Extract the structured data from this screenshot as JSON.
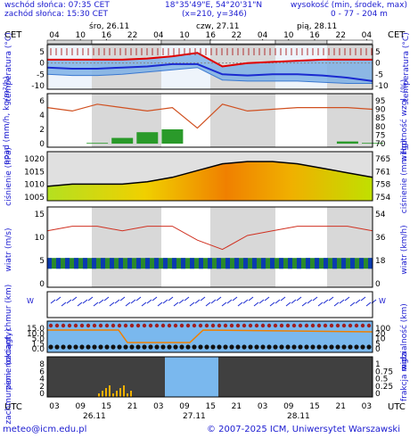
{
  "header": {
    "sunrise": "wschód słońca: 07:35 CET",
    "sunset": "zachód słońca: 15:30 CET",
    "coords": "18°35'49\"E, 54°20'31\"N",
    "grid": "(x=210, y=346)",
    "altitude_title": "wysokość (min, środek, max)",
    "altitude_values": "0 - 77 - 204 m"
  },
  "timezone_top": "CET",
  "timezone_bottom": "UTC",
  "top_hours": [
    "04",
    "10",
    "16",
    "22",
    "04",
    "10",
    "16",
    "22",
    "04",
    "10",
    "16",
    "22",
    "04"
  ],
  "bottom_hours": [
    "03",
    "09",
    "15",
    "21",
    "03",
    "09",
    "15",
    "21",
    "03",
    "09",
    "15",
    "21",
    "03"
  ],
  "top_days": [
    "śro, 26.11",
    "czw, 27.11",
    "pią, 28.11"
  ],
  "bottom_days": [
    "26.11",
    "27.11",
    "28.11"
  ],
  "footer": {
    "email": "meteo@icm.edu.pl",
    "copyright": "© 2007-2025 ICM, Uniwersytet Warszawski"
  },
  "panels": {
    "temperature": {
      "left": "temperatura (°C)",
      "right": "temperatura (°C)",
      "ticks": [
        "5",
        "0",
        "-5",
        "-10"
      ]
    },
    "precip": {
      "left": "opad (mm/h, kg/m²/h)",
      "right": "wilgotność wzgl. (%)",
      "ticks": [
        "6",
        "4",
        "2",
        "0"
      ],
      "rticks": [
        "95",
        "90",
        "85",
        "80",
        "75",
        "70"
      ]
    },
    "pressure": {
      "left": "ciśnienie (hPa)",
      "right": "ciśnienie (mm Hg)",
      "ticks": [
        "1020",
        "1015",
        "1010",
        "1005"
      ],
      "rticks": [
        "765",
        "761",
        "758",
        "754"
      ]
    },
    "wind": {
      "left": "wiatr (m/s)",
      "right": "wiatr (km/h)",
      "ticks": [
        "15",
        "10",
        "5",
        "0"
      ],
      "rticks": [
        "54",
        "36",
        "18",
        "0"
      ]
    },
    "winddir": {
      "left": "W S E N",
      "right": "W S E N"
    },
    "visibility": {
      "left": "pion. rozciągł. chmur (km)",
      "right": "widzialność (km)",
      "ticks": [
        "15.0",
        "10.0",
        "5.0",
        "1.5",
        "0.0"
      ],
      "rticks": [
        "100",
        "20",
        "10",
        "5",
        "0"
      ]
    },
    "clouds": {
      "left": "zachmurzenie (oktanty)",
      "right": "frakcja mgła",
      "ticks": [
        "8",
        "6",
        "4",
        "2",
        "0"
      ],
      "rticks": [
        "1",
        "0.75",
        "0.5",
        "0.25",
        "0"
      ]
    }
  },
  "chart_data": {
    "type": "line",
    "x_hours_utc": [
      0,
      6,
      12,
      18,
      24,
      30,
      36,
      42,
      48,
      54,
      60,
      66,
      72,
      78
    ],
    "temperature_c": {
      "max": [
        1.5,
        1.5,
        1.5,
        1.5,
        2.0,
        3.0,
        4.5,
        -1.5,
        0.0,
        0.5,
        1.0,
        1.5,
        1.5,
        1.5
      ],
      "mean": [
        -2.0,
        -2.5,
        -2.5,
        -2.0,
        -1.5,
        -0.5,
        -0.5,
        -5.0,
        -5.5,
        -5.0,
        -5.0,
        -5.5,
        -6.5,
        -8.0
      ],
      "min": [
        -5.0,
        -5.5,
        -5.5,
        -5.0,
        -4.0,
        -3.0,
        -2.0,
        -7.5,
        -8.0,
        -8.0,
        -8.0,
        -8.5,
        -9.0,
        -9.0
      ]
    },
    "humidity_pct": [
      90,
      88,
      92,
      90,
      88,
      90,
      78,
      92,
      88,
      89,
      90,
      90,
      90,
      89
    ],
    "precip_mm_h": [
      0,
      0,
      0.1,
      0.8,
      1.6,
      2.0,
      0,
      0,
      0,
      0,
      0,
      0,
      0.3,
      0.1
    ],
    "pressure_hpa": [
      1009,
      1010,
      1010,
      1010,
      1011,
      1013,
      1016,
      1019,
      1020,
      1020,
      1019,
      1017,
      1015,
      1013
    ],
    "wind_ms": {
      "gust": [
        11,
        12,
        12,
        11,
        12,
        12,
        9,
        7,
        10,
        11,
        12,
        12,
        12,
        11
      ],
      "mean": [
        4,
        4,
        4,
        4,
        4,
        3,
        3,
        4,
        4,
        4,
        4,
        4,
        4,
        4
      ]
    }
  }
}
